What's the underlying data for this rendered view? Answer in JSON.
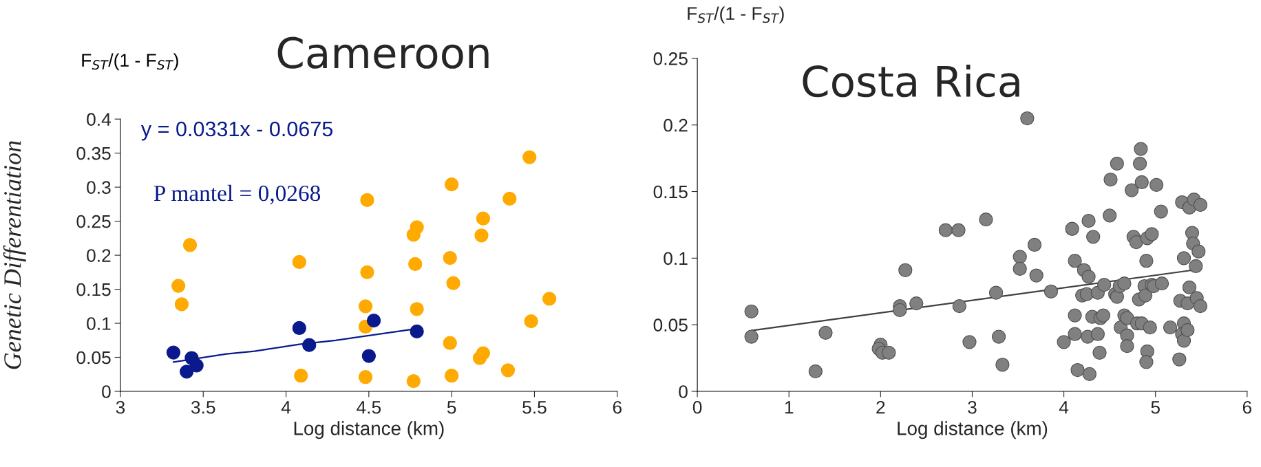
{
  "chart_data": [
    {
      "type": "scatter",
      "title": "Cameroon",
      "xlabel": "Log distance (km)",
      "ylabel": "Genetic Differentiation",
      "annotations": [
        "F$_{ST}$/(1 - F$_{ST}$)",
        "y = 0.0331x - 0.0675",
        "P mantel = 0,0268"
      ],
      "xlim": [
        3,
        6
      ],
      "xticks": [
        3,
        3.5,
        4,
        4.5,
        5,
        5.5,
        6
      ],
      "ylim": [
        0,
        0.4
      ],
      "yticks": [
        0,
        0.05,
        0.1,
        0.15,
        0.2,
        0.25,
        0.3,
        0.35,
        0.4
      ],
      "grid": false,
      "legend": false,
      "marker": "circle",
      "series": [
        {
          "type": "scatter",
          "color": "#ffaa00",
          "x": [
            3.35,
            3.37,
            3.42,
            4.08,
            4.09,
            4.49,
            4.49,
            4.48,
            4.48,
            4.48,
            4.79,
            4.77,
            4.78,
            4.79,
            4.77,
            5.0,
            4.99,
            5.01,
            4.99,
            5.0,
            5.19,
            5.18,
            5.19,
            5.17,
            5.35,
            5.34,
            5.47,
            5.48,
            5.59
          ],
          "values": [
            0.155,
            0.128,
            0.215,
            0.19,
            0.023,
            0.281,
            0.175,
            0.125,
            0.095,
            0.021,
            0.241,
            0.23,
            0.187,
            0.121,
            0.015,
            0.304,
            0.196,
            0.159,
            0.071,
            0.023,
            0.254,
            0.229,
            0.056,
            0.049,
            0.283,
            0.031,
            0.344,
            0.103,
            0.136
          ]
        },
        {
          "type": "scatter",
          "color": "#0a1a8c",
          "x": [
            3.32,
            3.4,
            3.43,
            3.46,
            4.08,
            4.14,
            4.53,
            4.5,
            4.79
          ],
          "values": [
            0.057,
            0.029,
            0.049,
            0.038,
            0.093,
            0.068,
            0.104,
            0.052,
            0.088
          ]
        },
        {
          "type": "line",
          "color": "#0a1a8c",
          "marker": "none",
          "line_style": "solid",
          "x": [
            3.32,
            3.64,
            3.81,
            4.08,
            4.3,
            4.79
          ],
          "values": [
            0.043,
            0.055,
            0.059,
            0.069,
            0.075,
            0.092
          ]
        }
      ]
    },
    {
      "type": "scatter",
      "title": "Costa Rica",
      "xlabel": "Log distance (km)",
      "ylabel": "F$_{ST}$/(1 - F$_{ST}$)",
      "xlim": [
        0,
        6
      ],
      "xticks": [
        0,
        1,
        2,
        3,
        4,
        5,
        6
      ],
      "ylim": [
        0,
        0.25
      ],
      "yticks": [
        0,
        0.05,
        0.1,
        0.15,
        0.2,
        0.25
      ],
      "grid": false,
      "legend": false,
      "marker": "circle",
      "series": [
        {
          "type": "scatter",
          "color": "#808080",
          "x": [
            0.59,
            0.59,
            1.29,
            1.4,
            2.0,
            1.98,
            2.02,
            2.09,
            2.27,
            2.21,
            2.21,
            2.39,
            2.71,
            2.85,
            2.86,
            2.97,
            3.15,
            3.26,
            3.29,
            3.33,
            3.52,
            3.52,
            3.6,
            3.68,
            3.7,
            3.86,
            4.0,
            4.09,
            4.12,
            4.12,
            4.12,
            4.15,
            4.22,
            4.2,
            4.25,
            4.27,
            4.27,
            4.32,
            4.26,
            4.28,
            4.31,
            4.37,
            4.37,
            4.39,
            4.4,
            4.43,
            4.44,
            4.5,
            4.51,
            4.58,
            4.56,
            4.58,
            4.61,
            4.66,
            4.62,
            4.66,
            4.69,
            4.69,
            4.69,
            4.74,
            4.76,
            4.79,
            4.8,
            4.85,
            4.82,
            4.84,
            4.83,
            4.85,
            4.88,
            4.89,
            4.9,
            4.91,
            4.96,
            4.91,
            4.9,
            4.94,
            4.96,
            4.98,
            5.01,
            5.06,
            5.07,
            5.16,
            5.26,
            5.27,
            5.29,
            5.31,
            5.31,
            5.29,
            5.31,
            5.35,
            5.35,
            5.37,
            5.37,
            5.4,
            5.41,
            5.42,
            5.44,
            5.45,
            5.47,
            5.49,
            5.49
          ],
          "values": [
            0.06,
            0.041,
            0.015,
            0.044,
            0.035,
            0.032,
            0.029,
            0.029,
            0.091,
            0.064,
            0.061,
            0.066,
            0.121,
            0.121,
            0.064,
            0.037,
            0.129,
            0.074,
            0.041,
            0.02,
            0.101,
            0.092,
            0.205,
            0.11,
            0.087,
            0.075,
            0.037,
            0.122,
            0.098,
            0.057,
            0.043,
            0.016,
            0.091,
            0.072,
            0.073,
            0.086,
            0.128,
            0.116,
            0.041,
            0.013,
            0.056,
            0.074,
            0.043,
            0.029,
            0.055,
            0.057,
            0.08,
            0.132,
            0.159,
            0.171,
            0.073,
            0.071,
            0.079,
            0.081,
            0.048,
            0.057,
            0.055,
            0.042,
            0.034,
            0.151,
            0.116,
            0.112,
            0.051,
            0.051,
            0.069,
            0.182,
            0.171,
            0.157,
            0.079,
            0.072,
            0.098,
            0.115,
            0.118,
            0.03,
            0.022,
            0.048,
            0.08,
            0.079,
            0.155,
            0.135,
            0.081,
            0.048,
            0.024,
            0.068,
            0.142,
            0.1,
            0.051,
            0.043,
            0.038,
            0.066,
            0.046,
            0.138,
            0.078,
            0.119,
            0.111,
            0.144,
            0.094,
            0.07,
            0.105,
            0.14,
            0.064
          ]
        },
        {
          "type": "line",
          "color": "#404040",
          "marker": "none",
          "line_style": "solid",
          "x": [
            0.59,
            5.49
          ],
          "values": [
            0.0456,
            0.0918
          ]
        }
      ]
    }
  ]
}
